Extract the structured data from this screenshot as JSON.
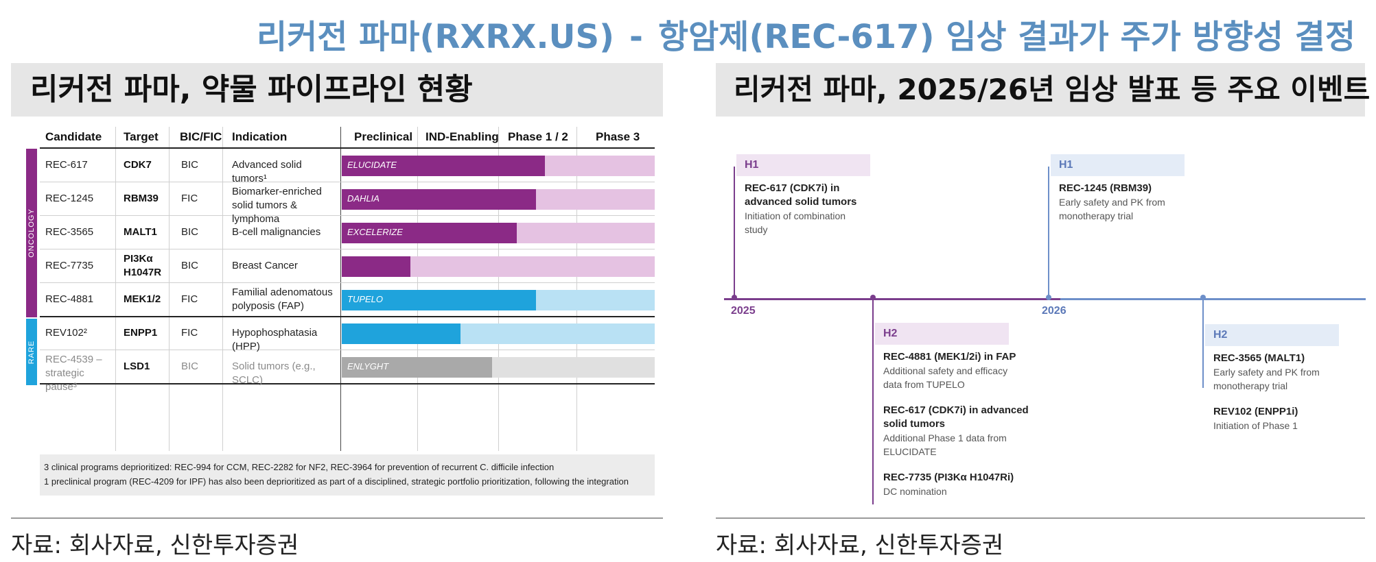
{
  "page": {
    "title_left": "리커전 파마(RXRX.US)",
    "title_sep": "-",
    "title_right": "항암제(REC-617) 임상 결과가 주가 방향성 결정"
  },
  "left_panel": {
    "header": "리커전 파마, 약물 파이프라인 현황",
    "source": "자료: 회사자료, 신한투자증권"
  },
  "right_panel": {
    "header": "리커전 파마, 2025/26년 임상 발표 등 주요 이벤트",
    "source": "자료: 회사자료, 신한투자증권"
  },
  "pipeline": {
    "columns": [
      "Candidate",
      "Target",
      "BIC/FIC",
      "Indication",
      "Preclinical",
      "IND-Enabling",
      "Phase 1 / 2",
      "Phase 3"
    ],
    "categories": [
      {
        "name": "ONCOLOGY",
        "color": "#8b2a86"
      },
      {
        "name": "RARE",
        "color": "#1fa3dc"
      }
    ],
    "rows": [
      {
        "candidate": "REC-617",
        "target": "CDK7",
        "bicfic": "BIC",
        "indication": "Advanced solid tumors¹",
        "trial": "ELUCIDATE",
        "progress": 0.65,
        "fg": "#8b2a86",
        "bg": "#e5c2e2"
      },
      {
        "candidate": "REC-1245",
        "target": "RBM39",
        "bicfic": "FIC",
        "indication": "Biomarker-enriched solid tumors & lymphoma",
        "trial": "DAHLIA",
        "progress": 0.62,
        "fg": "#8b2a86",
        "bg": "#e5c2e2"
      },
      {
        "candidate": "REC-3565",
        "target": "MALT1",
        "bicfic": "BIC",
        "indication": "B-cell malignancies",
        "trial": "EXCELERIZE",
        "progress": 0.56,
        "fg": "#8b2a86",
        "bg": "#e5c2e2"
      },
      {
        "candidate": "REC-7735",
        "target": "PI3Kα H1047R",
        "bicfic": "BIC",
        "indication": "Breast Cancer",
        "trial": "",
        "progress": 0.22,
        "fg": "#8b2a86",
        "bg": "#e5c2e2"
      },
      {
        "candidate": "REC-4881",
        "target": "MEK1/2",
        "bicfic": "FIC",
        "indication": "Familial adenomatous polyposis (FAP)",
        "trial": "TUPELO",
        "progress": 0.62,
        "fg": "#1fa3dc",
        "bg": "#b9e1f4"
      },
      {
        "candidate": "REV102²",
        "target": "ENPP1",
        "bicfic": "FIC",
        "indication": "Hypophosphatasia (HPP)",
        "trial": "",
        "progress": 0.38,
        "fg": "#1fa3dc",
        "bg": "#b9e1f4"
      },
      {
        "candidate": "REC-4539 – strategic pause³",
        "target": "LSD1",
        "bicfic": "BIC",
        "indication": "Solid tumors (e.g., SCLC)",
        "trial": "ENLYGHT",
        "progress": 0.48,
        "fg": "#a9a9a9",
        "bg": "#e0e0e0"
      }
    ],
    "note_line1": "3 clinical programs deprioritized: REC-994 for CCM, REC-2282 for NF2, REC-3964 for prevention of recurrent C. difficile infection",
    "note_line2": "1 preclinical program (REC-4209 for IPF) has also been deprioritized as part of a disciplined, strategic portfolio prioritization, following the integration"
  },
  "timeline": {
    "years": [
      "2025",
      "2026"
    ],
    "events": [
      {
        "half": "H1",
        "items": [
          {
            "title": "REC-617 (CDK7i) in advanced solid tumors",
            "desc": "Initiation of combination study"
          }
        ]
      },
      {
        "half": "H2",
        "items": [
          {
            "title": "REC-4881 (MEK1/2i) in FAP",
            "desc": "Additional safety and efficacy data from TUPELO"
          },
          {
            "title": "REC-617 (CDK7i) in advanced solid tumors",
            "desc": "Additional Phase 1 data from ELUCIDATE"
          },
          {
            "title": "REC-7735 (PI3Kα H1047Ri)",
            "desc": "DC nomination"
          }
        ]
      },
      {
        "half": "H1",
        "items": [
          {
            "title": "REC-1245 (RBM39)",
            "desc": "Early safety and PK from monotherapy trial"
          }
        ]
      },
      {
        "half": "H2",
        "items": [
          {
            "title": "REC-3565 (MALT1)",
            "desc": "Early safety and PK from monotherapy trial"
          },
          {
            "title": "REV102 (ENPP1i)",
            "desc": "Initiation of Phase 1"
          }
        ]
      }
    ],
    "colors": {
      "axis_2025": "#7a3d8c",
      "axis_2026": "#6d8fc9",
      "h_2025": "#f0e4f2",
      "h_2026": "#e4ecf7",
      "label_2025": "#7a3d8c",
      "label_2026": "#5b78b8"
    }
  }
}
